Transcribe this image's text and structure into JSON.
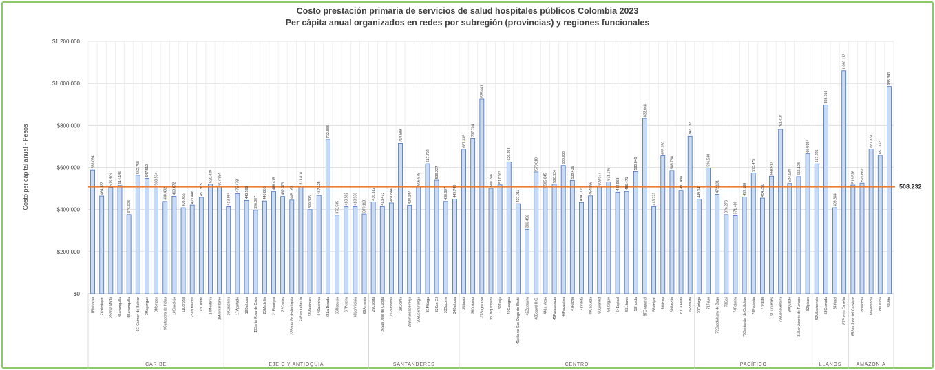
{
  "chart_data": {
    "type": "bar",
    "title": "Costo prestación primaria de servicios de salud hospitales públicos Colombia 2023",
    "subtitle": "Per cápita anual organizados en redes por subregión (provincias) y regiones funcionales",
    "xlabel": "",
    "ylabel": "Costo per cápital anual - Pesos",
    "ylim": [
      0,
      1200000
    ],
    "yticks": [
      0,
      200000,
      400000,
      600000,
      800000,
      1000000,
      1200000
    ],
    "ytick_labels": [
      "$0",
      "$200.000",
      "$400.000",
      "$600.000",
      "$800.000",
      "$1.000.000",
      "$1.200.000"
    ],
    "grid": true,
    "legend": "none",
    "categories": [
      "1Riohacha",
      "2Valledupar",
      "3Santa Marta",
      "4Barranquilla",
      "5Barranquilla",
      "6El Carmen de Bolívar",
      "7Magangué",
      "8Mompox",
      "9Cartagena de Indias",
      "10Sincelejo",
      "11Corozal",
      "12San Marcos",
      "13Cereté",
      "14Montería",
      "15Montelíbano",
      "16Caucasia",
      "17Apartadó",
      "18Barbosa",
      "19Santa Rosa de Osos",
      "20Medellín",
      "21Rionegro",
      "22Caldas",
      "23Santa Fe de Antioquia",
      "24Puerto Berrío",
      "63Manizales",
      "64Salamina",
      "65La Dorada",
      "66Riosucio",
      "67Pereira",
      "68La Virginia",
      "69Armenia",
      "25Cúcuta",
      "26San José de Cúcuta",
      "27Pamplona",
      "28Ocaña",
      "29Barrancabermeja",
      "30Bucaramanga",
      "31Málaga",
      "32San Gil",
      "33Socorro",
      "34Barbosa",
      "35Soatá",
      "36Duitama",
      "37Sogamoso",
      "38Chiquinquirá",
      "39Tunja",
      "40Garagoa",
      "41Villa de San Diego de Ubaté",
      "42Zipaquirá",
      "43Bogotá D.C.",
      "44La Mesa",
      "45Fusagasugá",
      "46Facatativá",
      "47Pacho",
      "48Villeta",
      "49Cáqueza",
      "50Girardot",
      "51Ibagué",
      "54Espinal",
      "55Líbano",
      "56Honda",
      "57Chaparral",
      "58Melgar",
      "59Neiva",
      "60Garzón",
      "61La Plata",
      "62Pitalito",
      "70Cartago",
      "71Tuluá",
      "72Guadalajara de Buga",
      "73Cali",
      "74Palmira",
      "75Santander de Quilichao",
      "76Popayán",
      "77Pasto",
      "78Túquerres",
      "79Buenaventura",
      "80Quibdó",
      "81San Andrés de Tumaco",
      "82Ipiales",
      "52Villavicencio",
      "53Granada",
      "84Yopal",
      "87Puerto Carreño",
      "85San José del Guaviare",
      "83Mocoa",
      "88Florencia",
      "86Leticia",
      "89Mitú"
    ],
    "series": [
      {
        "values": [
          588094,
          464132,
          503876,
          514145,
          376608,
          562758,
          547510,
          508534,
          438482,
          463072,
          408465,
          421446,
          457975,
          520439,
          507884,
          413984,
          475478,
          443598,
          396307,
          440866,
          486415,
          462075,
          445163,
          511810,
          399396,
          467125,
          732883,
          373535,
          413582,
          413530,
          379113,
          436332,
          413473,
          431844,
          714589,
          420147,
          506879,
          617702,
          539227,
          438897,
          449743,
          687339,
          737704,
          925441,
          500248,
          517363,
          626254,
          427911,
          306456,
          579018,
          505845,
          520324,
          608930,
          538436,
          434117,
          464886,
          508077,
          531136,
          482968,
          486471,
          580840,
          833648,
          413723,
          655350,
          585788,
          491498,
          747737,
          449041,
          596538,
          472191,
          376273,
          371480,
          459188,
          573475,
          454390,
          558517,
          781418,
          524134,
          556108,
          664954,
          617225,
          898016,
          408844,
          1060113,
          516526,
          525862,
          687874,
          657332,
          985340
        ]
      }
    ],
    "groups": [
      {
        "name": "CARIBE",
        "category_count": 15
      },
      {
        "name": "EJE C Y ANTIOQUIA",
        "category_count": 16
      },
      {
        "name": "SANTANDERES",
        "category_count": 10
      },
      {
        "name": "CENTRO",
        "category_count": 26
      },
      {
        "name": "PACÍFICO",
        "category_count": 13
      },
      {
        "name": "LLANOS",
        "category_count": 4
      },
      {
        "name": "AMAZONIA",
        "category_count": 5
      }
    ],
    "reference_line": {
      "value": 508232,
      "label": "508.232"
    },
    "colors": {
      "bar_fill": "#c9daf1",
      "bar_stroke": "#4472c4",
      "reference_line": "#ed7d31",
      "frame": "#8cc96a"
    }
  }
}
